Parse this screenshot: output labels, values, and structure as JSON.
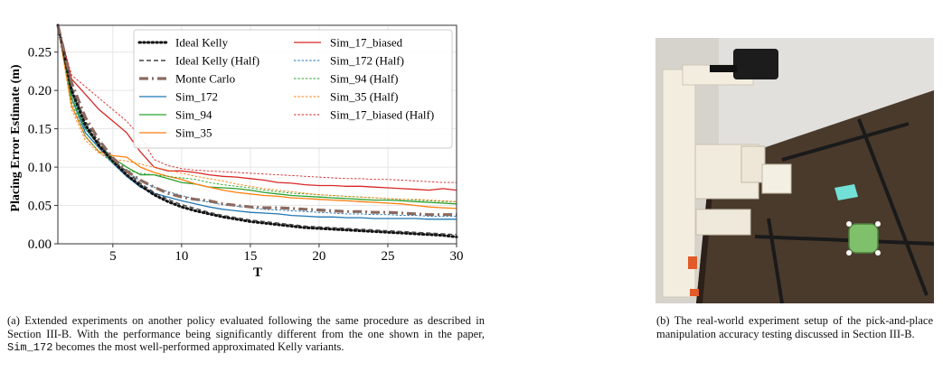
{
  "chart_data": {
    "type": "line",
    "ylabel": "Placing Error Estimate (m)",
    "xlabel": "T",
    "xlim": [
      1,
      30
    ],
    "ylim": [
      0,
      0.285
    ],
    "xticks": [
      5,
      10,
      15,
      20,
      25,
      30
    ],
    "yticks": [
      0.0,
      0.05,
      0.1,
      0.15,
      0.2,
      0.25
    ],
    "xtick_labels": [
      "5",
      "10",
      "15",
      "20",
      "25",
      "30"
    ],
    "ytick_labels": [
      "0.00",
      "0.05",
      "0.10",
      "0.15",
      "0.20",
      "0.25"
    ],
    "grid": true,
    "legend_placement": "top-right",
    "x": [
      1,
      2,
      3,
      4,
      5,
      6,
      7,
      8,
      9,
      10,
      11,
      12,
      13,
      14,
      15,
      16,
      17,
      18,
      19,
      20,
      21,
      22,
      23,
      24,
      25,
      26,
      27,
      28,
      29,
      30
    ],
    "series": [
      {
        "name": "Ideal Kelly",
        "color": "#111111",
        "style": "dotted-thick",
        "values": [
          0.285,
          0.2,
          0.155,
          0.128,
          0.108,
          0.09,
          0.076,
          0.064,
          0.055,
          0.048,
          0.043,
          0.039,
          0.035,
          0.032,
          0.029,
          0.027,
          0.025,
          0.023,
          0.021,
          0.02,
          0.019,
          0.018,
          0.017,
          0.016,
          0.015,
          0.014,
          0.013,
          0.012,
          0.011,
          0.009
        ]
      },
      {
        "name": "Ideal Kelly (Half)",
        "color": "#444444",
        "style": "dashed",
        "values": [
          0.285,
          0.205,
          0.16,
          0.132,
          0.11,
          0.094,
          0.079,
          0.067,
          0.058,
          0.051,
          0.046,
          0.041,
          0.037,
          0.034,
          0.031,
          0.029,
          0.027,
          0.025,
          0.023,
          0.022,
          0.021,
          0.02,
          0.019,
          0.018,
          0.017,
          0.016,
          0.015,
          0.014,
          0.013,
          0.012
        ]
      },
      {
        "name": "Monte Carlo",
        "color": "#8c6a60",
        "style": "dashdot-thick",
        "values": [
          0.285,
          0.21,
          0.165,
          0.135,
          0.112,
          0.095,
          0.083,
          0.074,
          0.066,
          0.061,
          0.058,
          0.056,
          0.052,
          0.05,
          0.048,
          0.047,
          0.047,
          0.046,
          0.045,
          0.044,
          0.043,
          0.042,
          0.042,
          0.041,
          0.041,
          0.04,
          0.039,
          0.038,
          0.038,
          0.038
        ]
      },
      {
        "name": "Sim_172",
        "color": "#1f77b4",
        "style": "solid",
        "values": [
          0.285,
          0.19,
          0.145,
          0.125,
          0.105,
          0.088,
          0.074,
          0.066,
          0.061,
          0.056,
          0.052,
          0.048,
          0.045,
          0.043,
          0.041,
          0.04,
          0.039,
          0.037,
          0.036,
          0.035,
          0.035,
          0.034,
          0.034,
          0.033,
          0.033,
          0.033,
          0.033,
          0.032,
          0.032,
          0.032
        ]
      },
      {
        "name": "Sim_94",
        "color": "#2ca02c",
        "style": "solid",
        "values": [
          0.285,
          0.19,
          0.15,
          0.128,
          0.112,
          0.1,
          0.09,
          0.09,
          0.085,
          0.08,
          0.078,
          0.074,
          0.073,
          0.072,
          0.07,
          0.067,
          0.065,
          0.063,
          0.062,
          0.061,
          0.06,
          0.059,
          0.058,
          0.057,
          0.057,
          0.056,
          0.055,
          0.054,
          0.053,
          0.052
        ]
      },
      {
        "name": "Sim_35",
        "color": "#ff7f0e",
        "style": "solid",
        "values": [
          0.285,
          0.18,
          0.14,
          0.12,
          0.115,
          0.113,
          0.1,
          0.093,
          0.088,
          0.084,
          0.078,
          0.074,
          0.07,
          0.067,
          0.065,
          0.063,
          0.062,
          0.06,
          0.059,
          0.058,
          0.057,
          0.056,
          0.055,
          0.054,
          0.053,
          0.052,
          0.05,
          0.048,
          0.047,
          0.046
        ]
      },
      {
        "name": "Sim_17_biased",
        "color": "#d62728",
        "style": "solid",
        "values": [
          0.285,
          0.215,
          0.195,
          0.175,
          0.16,
          0.145,
          0.12,
          0.1,
          0.095,
          0.095,
          0.093,
          0.09,
          0.088,
          0.087,
          0.085,
          0.083,
          0.08,
          0.079,
          0.077,
          0.076,
          0.076,
          0.075,
          0.075,
          0.074,
          0.073,
          0.072,
          0.071,
          0.07,
          0.072,
          0.07
        ]
      },
      {
        "name": "Sim_172 (Half)",
        "color": "#1f77b4",
        "style": "thin-dashed",
        "values": [
          0.285,
          0.195,
          0.15,
          0.128,
          0.11,
          0.095,
          0.082,
          0.074,
          0.068,
          0.063,
          0.058,
          0.054,
          0.051,
          0.049,
          0.047,
          0.045,
          0.044,
          0.043,
          0.042,
          0.041,
          0.04,
          0.039,
          0.039,
          0.038,
          0.038,
          0.037,
          0.037,
          0.036,
          0.036,
          0.036
        ]
      },
      {
        "name": "Sim_94 (Half)",
        "color": "#2ca02c",
        "style": "thin-dashed",
        "values": [
          0.285,
          0.185,
          0.14,
          0.12,
          0.105,
          0.096,
          0.092,
          0.09,
          0.088,
          0.086,
          0.084,
          0.08,
          0.077,
          0.075,
          0.073,
          0.07,
          0.068,
          0.066,
          0.065,
          0.064,
          0.063,
          0.062,
          0.061,
          0.06,
          0.059,
          0.058,
          0.057,
          0.056,
          0.055,
          0.055
        ]
      },
      {
        "name": "Sim_35 (Half)",
        "color": "#ff7f0e",
        "style": "thin-dashed",
        "values": [
          0.285,
          0.175,
          0.135,
          0.118,
          0.11,
          0.108,
          0.104,
          0.1,
          0.096,
          0.092,
          0.088,
          0.085,
          0.082,
          0.078,
          0.075,
          0.072,
          0.07,
          0.068,
          0.066,
          0.064,
          0.063,
          0.062,
          0.061,
          0.06,
          0.059,
          0.058,
          0.058,
          0.057,
          0.056,
          0.055
        ]
      },
      {
        "name": "Sim_17_biased (Half)",
        "color": "#d62728",
        "style": "thin-dashed",
        "values": [
          0.285,
          0.22,
          0.205,
          0.19,
          0.175,
          0.16,
          0.14,
          0.11,
          0.102,
          0.098,
          0.096,
          0.095,
          0.094,
          0.093,
          0.092,
          0.091,
          0.09,
          0.089,
          0.088,
          0.087,
          0.086,
          0.085,
          0.085,
          0.084,
          0.084,
          0.083,
          0.082,
          0.081,
          0.08,
          0.08
        ]
      }
    ]
  },
  "captions": {
    "a_prefix": "(a) Extended experiments on another policy evaluated following the same procedure as described in Section III-B. With the performance being significantly different from the one shown in the paper,",
    "a_code": "Sim_172",
    "a_suffix": "becomes the most well-performed approximated Kelly variants.",
    "b": "(b) The real-world experiment setup of the pick-and-place manipulation accuracy testing discussed in Section III-B."
  },
  "colors": {
    "table": "#4a3a2c",
    "wall": "#e2e0dc",
    "tape": "#1a1a1a",
    "robot": "#f3ede0",
    "robot_accent": "#e15a27",
    "cyan_pad": "#72e0d6",
    "target_object": "#7fc06a"
  }
}
